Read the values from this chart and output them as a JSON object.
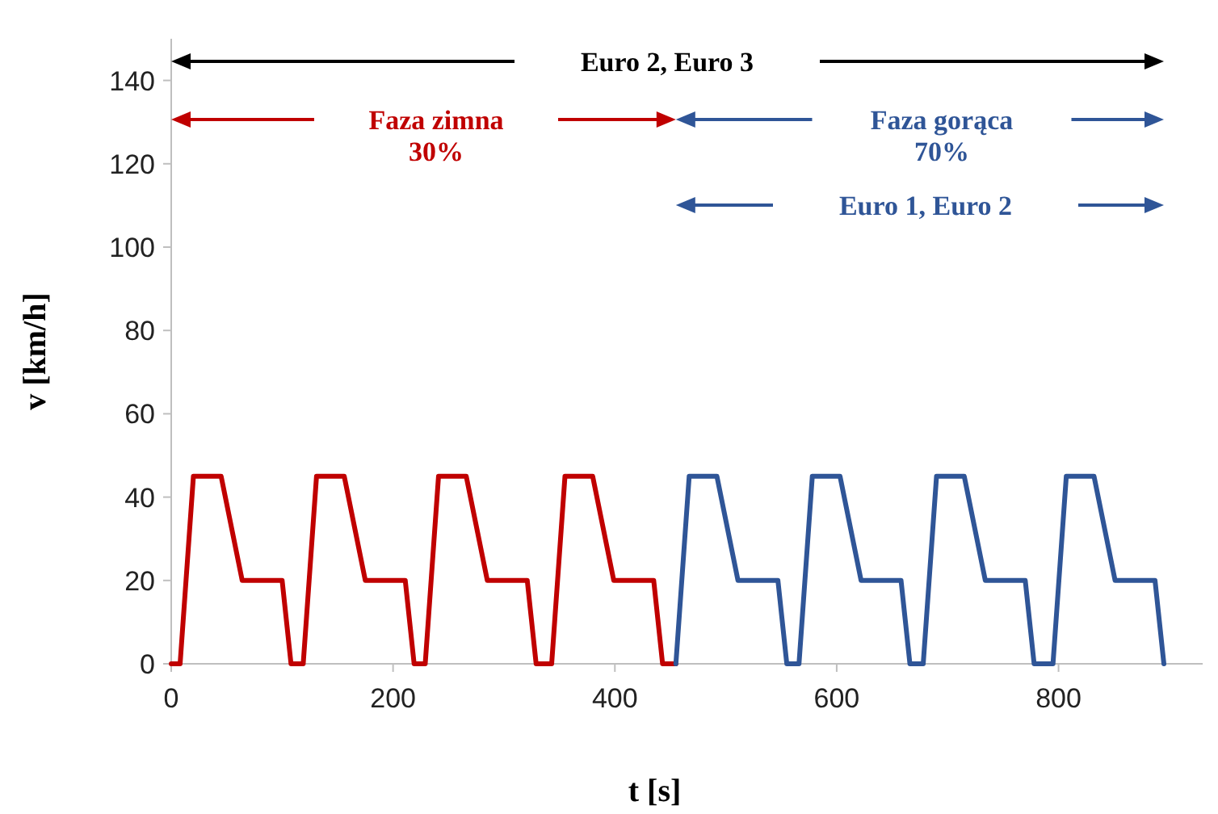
{
  "chart_data": {
    "type": "line",
    "xlabel": "t [s]",
    "ylabel": "v [km/h]",
    "xlim": [
      0,
      930
    ],
    "ylim": [
      0,
      150
    ],
    "xticks": [
      0,
      200,
      400,
      600,
      800
    ],
    "yticks": [
      0,
      20,
      40,
      60,
      80,
      100,
      120,
      140
    ],
    "grid": false,
    "marker": "none",
    "line_style": "solid",
    "series": [
      {
        "color": "#c00000",
        "x": [
          0,
          8,
          20,
          45,
          64,
          100,
          108,
          119,
          131,
          156,
          175,
          211,
          219,
          229,
          241,
          266,
          285,
          321,
          329,
          343,
          355,
          380,
          399,
          435,
          443,
          455
        ],
        "values": [
          0,
          0,
          45,
          45,
          20,
          20,
          0,
          0,
          45,
          45,
          20,
          20,
          0,
          0,
          45,
          45,
          20,
          20,
          0,
          0,
          45,
          45,
          20,
          20,
          0,
          0
        ]
      },
      {
        "color": "#2f5597",
        "x": [
          455,
          467,
          492,
          511,
          547,
          555,
          566,
          578,
          603,
          622,
          658,
          666,
          678,
          690,
          715,
          734,
          770,
          778,
          795,
          807,
          832,
          851,
          887,
          895
        ],
        "values": [
          0,
          45,
          45,
          20,
          20,
          0,
          0,
          45,
          45,
          20,
          20,
          0,
          0,
          45,
          45,
          20,
          20,
          0,
          0,
          45,
          45,
          20,
          20,
          0
        ]
      }
    ],
    "annotations": [
      "Euro 2, Euro 3",
      "Faza zimna\n30%",
      "Faza gorąca\n70%",
      "Euro 1, Euro 2"
    ]
  }
}
